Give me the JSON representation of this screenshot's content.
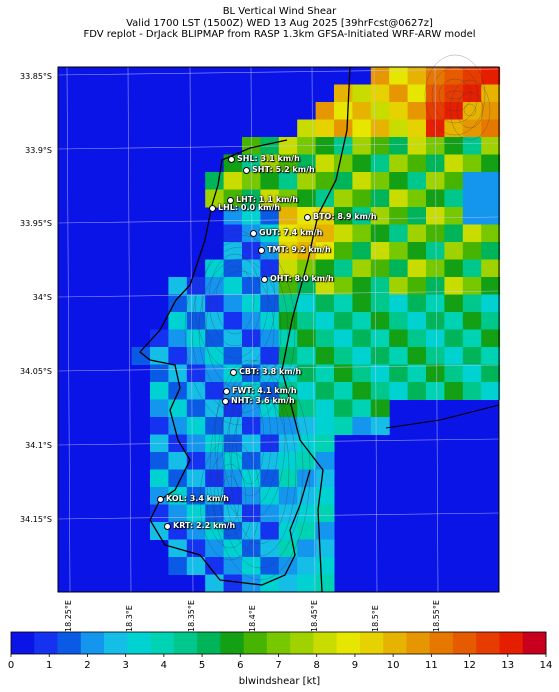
{
  "header": {
    "title_line1": "BL Vertical Wind Shear",
    "title_line2": "Valid 1700 LST (1500Z) WED 13 Aug 2025 [39hrFcst@0627z]",
    "title_line3": "FDV replot - DrJack BLIPMAP from RASP 1.3km GFSA-Initiated WRF-ARW model"
  },
  "map": {
    "background_color": "#0a14e6",
    "lat_labels": [
      "33.85°S",
      "33.9°S",
      "33.95°S",
      "34°S",
      "34.05°S",
      "34.1°S",
      "34.15°S"
    ],
    "lon_labels": [
      "18.25°E",
      "18.3°E",
      "18.35°E",
      "18.4°E",
      "18.45°E",
      "18.5°E",
      "18.55°E"
    ],
    "stations": [
      {
        "code": "SHL",
        "label": "SHL: 3.1 km/h",
        "value_kmh": 3.1
      },
      {
        "code": "SHT",
        "label": "SHT: 5.2 km/h",
        "value_kmh": 5.2
      },
      {
        "code": "LHT",
        "label": "LHT: 1.1 km/h",
        "value_kmh": 1.1
      },
      {
        "code": "LHL",
        "label": "LHL: 0.0 km/h",
        "value_kmh": 0.0
      },
      {
        "code": "BTO",
        "label": "BTO: 8.9 km/h",
        "value_kmh": 8.9
      },
      {
        "code": "GUT",
        "label": "GUT: 7.4 km/h",
        "value_kmh": 7.4
      },
      {
        "code": "TMT",
        "label": "TMT: 9.2 km/h",
        "value_kmh": 9.2
      },
      {
        "code": "OHT",
        "label": "OHT: 8.0 km/h",
        "value_kmh": 8.0
      },
      {
        "code": "CBT",
        "label": "CBT: 3.8 km/h",
        "value_kmh": 3.8
      },
      {
        "code": "FWT",
        "label": "FWT: 4.1 km/h",
        "value_kmh": 4.1
      },
      {
        "code": "NHT",
        "label": "NHT: 3.6 km/h",
        "value_kmh": 3.6
      },
      {
        "code": "KOL",
        "label": "KOL: 3.4 km/h",
        "value_kmh": 3.4
      },
      {
        "code": "KRT",
        "label": "KRT: 2.2 km/h",
        "value_kmh": 2.2
      }
    ]
  },
  "colorbar": {
    "label": "blwindshear [kt]",
    "ticks": [
      "0",
      "1",
      "2",
      "3",
      "4",
      "5",
      "6",
      "7",
      "8",
      "9",
      "10",
      "11",
      "12",
      "13",
      "14"
    ],
    "colors": [
      "#0a14e6",
      "#1432f0",
      "#0a5ae6",
      "#1496ee",
      "#14bee6",
      "#00d2d2",
      "#00d2b4",
      "#00c88c",
      "#00b45a",
      "#14a014",
      "#46b400",
      "#78c800",
      "#a0d200",
      "#c8dc00",
      "#e6e600",
      "#e6d200",
      "#e6b400",
      "#e69600",
      "#e67800",
      "#e65a00",
      "#e63c00",
      "#e61e00",
      "#c8001e"
    ]
  }
}
